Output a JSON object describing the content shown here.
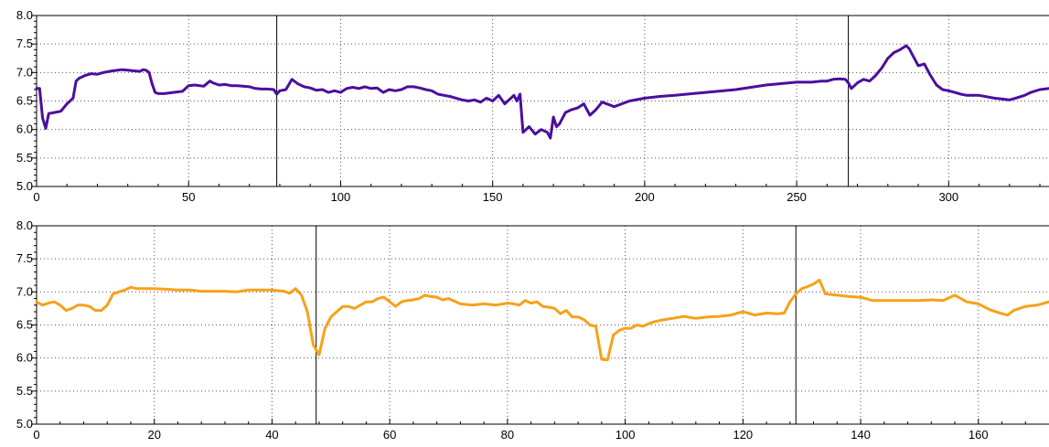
{
  "chart_data": [
    {
      "type": "line",
      "xlim": [
        0,
        333
      ],
      "ylim": [
        5.0,
        8.0
      ],
      "xticks": [
        0,
        50,
        100,
        150,
        200,
        250,
        300
      ],
      "xtick_labels": [
        "0",
        "50",
        "100",
        "150",
        "200",
        "250",
        "300"
      ],
      "yticks": [
        5.0,
        5.5,
        6.0,
        6.5,
        7.0,
        7.5,
        8.0
      ],
      "ytick_labels": [
        "5.0",
        "5.5",
        "6.0",
        "6.5",
        "7.0",
        "7.5",
        "8.0"
      ],
      "xgrid": [
        50,
        100,
        150,
        200,
        250,
        300
      ],
      "ygrid": [
        5.5,
        6.0,
        6.5,
        7.0,
        7.5
      ],
      "markers": [
        79,
        267
      ],
      "grid": true,
      "series": [
        {
          "color": "#4b0f9c",
          "x": [
            0,
            1,
            2,
            3,
            4,
            6,
            8,
            10,
            12,
            13,
            14,
            16,
            18,
            20,
            22,
            25,
            28,
            30,
            32,
            34,
            35,
            36,
            37,
            38,
            39,
            40,
            42,
            45,
            48,
            50,
            52,
            55,
            57,
            58,
            60,
            62,
            64,
            66,
            70,
            72,
            74,
            76,
            78,
            79,
            80,
            82,
            84,
            86,
            88,
            90,
            92,
            94,
            96,
            98,
            100,
            102,
            104,
            106,
            108,
            110,
            112,
            114,
            116,
            118,
            120,
            122,
            124,
            126,
            128,
            130,
            132,
            134,
            136,
            138,
            140,
            142,
            144,
            146,
            148,
            150,
            152,
            154,
            156,
            157,
            158,
            159,
            160,
            161,
            162,
            164,
            166,
            168,
            169,
            170,
            171,
            172,
            174,
            176,
            178,
            180,
            182,
            184,
            186,
            190,
            195,
            200,
            205,
            210,
            220,
            230,
            240,
            250,
            255,
            258,
            260,
            262,
            264,
            266,
            267,
            268,
            270,
            272,
            274,
            276,
            278,
            280,
            282,
            284,
            286,
            287,
            288,
            290,
            292,
            294,
            296,
            298,
            300,
            302,
            304,
            306,
            310,
            315,
            320,
            322,
            325,
            327,
            330,
            333
          ],
          "y": [
            6.72,
            6.72,
            6.2,
            6.02,
            6.28,
            6.3,
            6.32,
            6.45,
            6.55,
            6.85,
            6.9,
            6.95,
            6.98,
            6.97,
            7.0,
            7.03,
            7.05,
            7.04,
            7.03,
            7.02,
            7.05,
            7.04,
            7.0,
            6.8,
            6.65,
            6.63,
            6.63,
            6.65,
            6.67,
            6.77,
            6.78,
            6.76,
            6.85,
            6.82,
            6.78,
            6.79,
            6.77,
            6.77,
            6.75,
            6.72,
            6.71,
            6.71,
            6.7,
            6.62,
            6.68,
            6.7,
            6.88,
            6.8,
            6.75,
            6.73,
            6.69,
            6.7,
            6.65,
            6.68,
            6.65,
            6.72,
            6.74,
            6.72,
            6.75,
            6.72,
            6.73,
            6.65,
            6.7,
            6.68,
            6.7,
            6.75,
            6.75,
            6.73,
            6.7,
            6.68,
            6.62,
            6.6,
            6.58,
            6.55,
            6.52,
            6.5,
            6.52,
            6.48,
            6.55,
            6.5,
            6.6,
            6.45,
            6.55,
            6.6,
            6.5,
            6.62,
            5.95,
            6.0,
            6.05,
            5.92,
            6.0,
            5.95,
            5.85,
            6.22,
            6.05,
            6.1,
            6.3,
            6.35,
            6.38,
            6.45,
            6.25,
            6.35,
            6.48,
            6.4,
            6.5,
            6.55,
            6.58,
            6.6,
            6.65,
            6.7,
            6.78,
            6.83,
            6.83,
            6.85,
            6.85,
            6.88,
            6.89,
            6.88,
            6.82,
            6.72,
            6.82,
            6.88,
            6.85,
            6.95,
            7.08,
            7.25,
            7.35,
            7.4,
            7.47,
            7.42,
            7.32,
            7.12,
            7.15,
            6.95,
            6.78,
            6.7,
            6.68,
            6.65,
            6.62,
            6.6,
            6.6,
            6.55,
            6.52,
            6.55,
            6.6,
            6.65,
            6.7,
            6.72
          ]
        }
      ]
    },
    {
      "type": "line",
      "xlim": [
        0,
        172
      ],
      "ylim": [
        5.0,
        8.0
      ],
      "xticks": [
        0,
        20,
        40,
        60,
        80,
        100,
        120,
        140,
        160
      ],
      "xtick_labels": [
        "0",
        "20",
        "40",
        "60",
        "80",
        "100",
        "120",
        "140",
        "160"
      ],
      "yticks": [
        5.0,
        5.5,
        6.0,
        6.5,
        7.0,
        7.5,
        8.0
      ],
      "ytick_labels": [
        "5.0",
        "5.5",
        "6.0",
        "6.5",
        "7.0",
        "7.5",
        "8.0"
      ],
      "xgrid": [
        20,
        40,
        60,
        80,
        100,
        120,
        140,
        160
      ],
      "ygrid": [
        5.5,
        6.0,
        6.5,
        7.0,
        7.5
      ],
      "markers": [
        47.5,
        129
      ],
      "grid": true,
      "series": [
        {
          "color": "#f7a11a",
          "x": [
            0,
            1,
            2,
            3,
            4,
            5,
            6,
            7,
            8,
            9,
            10,
            11,
            12,
            13,
            14,
            15,
            16,
            17,
            18,
            19,
            20,
            22,
            24,
            26,
            28,
            30,
            32,
            34,
            36,
            38,
            40,
            42,
            43,
            44,
            45,
            46,
            47,
            48,
            49,
            50,
            51,
            52,
            53,
            54,
            55,
            56,
            57,
            58,
            59,
            60,
            61,
            62,
            63,
            64,
            65,
            66,
            67,
            68,
            69,
            70,
            72,
            74,
            76,
            78,
            80,
            81,
            82,
            83,
            84,
            85,
            86,
            87,
            88,
            89,
            90,
            91,
            92,
            93,
            94,
            95,
            96,
            97,
            98,
            99,
            100,
            101,
            102,
            103,
            104,
            105,
            106,
            108,
            110,
            112,
            114,
            116,
            118,
            120,
            122,
            124,
            126,
            127,
            128,
            129,
            130,
            131,
            132,
            133,
            134,
            136,
            138,
            140,
            142,
            144,
            146,
            148,
            150,
            152,
            154,
            156,
            157,
            158,
            160,
            162,
            164,
            165,
            166,
            168,
            170,
            172
          ],
          "y": [
            6.85,
            6.8,
            6.83,
            6.85,
            6.8,
            6.72,
            6.75,
            6.8,
            6.8,
            6.78,
            6.72,
            6.72,
            6.8,
            6.97,
            7.0,
            7.03,
            7.07,
            7.05,
            7.05,
            7.05,
            7.05,
            7.04,
            7.03,
            7.03,
            7.01,
            7.01,
            7.01,
            7.0,
            7.03,
            7.03,
            7.03,
            7.01,
            6.98,
            7.05,
            6.95,
            6.7,
            6.2,
            6.05,
            6.45,
            6.62,
            6.7,
            6.78,
            6.78,
            6.75,
            6.8,
            6.85,
            6.85,
            6.9,
            6.92,
            6.85,
            6.78,
            6.85,
            6.87,
            6.88,
            6.9,
            6.95,
            6.93,
            6.92,
            6.88,
            6.9,
            6.82,
            6.8,
            6.82,
            6.8,
            6.83,
            6.82,
            6.8,
            6.87,
            6.83,
            6.85,
            6.78,
            6.77,
            6.75,
            6.67,
            6.72,
            6.62,
            6.62,
            6.58,
            6.5,
            6.48,
            5.98,
            5.97,
            6.35,
            6.42,
            6.45,
            6.45,
            6.5,
            6.48,
            6.52,
            6.55,
            6.57,
            6.6,
            6.63,
            6.6,
            6.62,
            6.63,
            6.65,
            6.7,
            6.65,
            6.68,
            6.67,
            6.68,
            6.85,
            6.97,
            7.05,
            7.08,
            7.12,
            7.18,
            6.97,
            6.95,
            6.93,
            6.92,
            6.87,
            6.87,
            6.87,
            6.87,
            6.87,
            6.88,
            6.87,
            6.95,
            6.9,
            6.85,
            6.82,
            6.73,
            6.67,
            6.65,
            6.72,
            6.78,
            6.8,
            6.85
          ]
        }
      ]
    }
  ]
}
